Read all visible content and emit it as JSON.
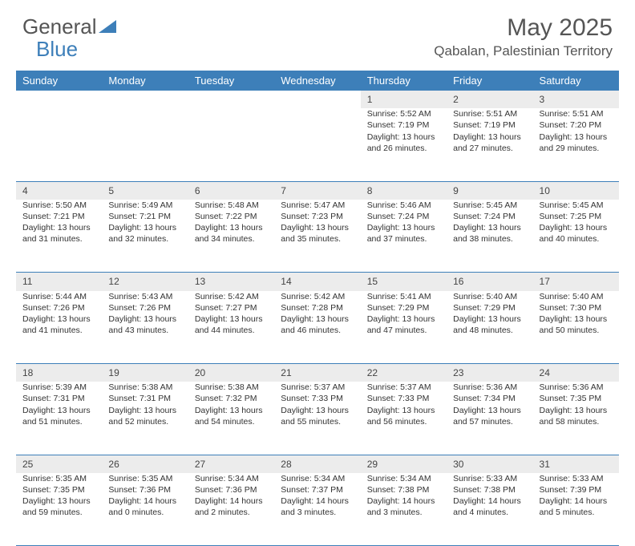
{
  "brand": {
    "part1": "General",
    "part2": "Blue"
  },
  "title": "May 2025",
  "location": "Qabalan, Palestinian Territory",
  "colors": {
    "header_bg": "#3d7fb9",
    "header_text": "#ffffff",
    "daynum_bg": "#ececec",
    "rule": "#3d7fb9",
    "page_bg": "#ffffff",
    "body_text": "#333333"
  },
  "day_headers": [
    "Sunday",
    "Monday",
    "Tuesday",
    "Wednesday",
    "Thursday",
    "Friday",
    "Saturday"
  ],
  "weeks": [
    [
      null,
      null,
      null,
      null,
      {
        "n": "1",
        "sr": "5:52 AM",
        "ss": "7:19 PM",
        "dl": "13 hours and 26 minutes."
      },
      {
        "n": "2",
        "sr": "5:51 AM",
        "ss": "7:19 PM",
        "dl": "13 hours and 27 minutes."
      },
      {
        "n": "3",
        "sr": "5:51 AM",
        "ss": "7:20 PM",
        "dl": "13 hours and 29 minutes."
      }
    ],
    [
      {
        "n": "4",
        "sr": "5:50 AM",
        "ss": "7:21 PM",
        "dl": "13 hours and 31 minutes."
      },
      {
        "n": "5",
        "sr": "5:49 AM",
        "ss": "7:21 PM",
        "dl": "13 hours and 32 minutes."
      },
      {
        "n": "6",
        "sr": "5:48 AM",
        "ss": "7:22 PM",
        "dl": "13 hours and 34 minutes."
      },
      {
        "n": "7",
        "sr": "5:47 AM",
        "ss": "7:23 PM",
        "dl": "13 hours and 35 minutes."
      },
      {
        "n": "8",
        "sr": "5:46 AM",
        "ss": "7:24 PM",
        "dl": "13 hours and 37 minutes."
      },
      {
        "n": "9",
        "sr": "5:45 AM",
        "ss": "7:24 PM",
        "dl": "13 hours and 38 minutes."
      },
      {
        "n": "10",
        "sr": "5:45 AM",
        "ss": "7:25 PM",
        "dl": "13 hours and 40 minutes."
      }
    ],
    [
      {
        "n": "11",
        "sr": "5:44 AM",
        "ss": "7:26 PM",
        "dl": "13 hours and 41 minutes."
      },
      {
        "n": "12",
        "sr": "5:43 AM",
        "ss": "7:26 PM",
        "dl": "13 hours and 43 minutes."
      },
      {
        "n": "13",
        "sr": "5:42 AM",
        "ss": "7:27 PM",
        "dl": "13 hours and 44 minutes."
      },
      {
        "n": "14",
        "sr": "5:42 AM",
        "ss": "7:28 PM",
        "dl": "13 hours and 46 minutes."
      },
      {
        "n": "15",
        "sr": "5:41 AM",
        "ss": "7:29 PM",
        "dl": "13 hours and 47 minutes."
      },
      {
        "n": "16",
        "sr": "5:40 AM",
        "ss": "7:29 PM",
        "dl": "13 hours and 48 minutes."
      },
      {
        "n": "17",
        "sr": "5:40 AM",
        "ss": "7:30 PM",
        "dl": "13 hours and 50 minutes."
      }
    ],
    [
      {
        "n": "18",
        "sr": "5:39 AM",
        "ss": "7:31 PM",
        "dl": "13 hours and 51 minutes."
      },
      {
        "n": "19",
        "sr": "5:38 AM",
        "ss": "7:31 PM",
        "dl": "13 hours and 52 minutes."
      },
      {
        "n": "20",
        "sr": "5:38 AM",
        "ss": "7:32 PM",
        "dl": "13 hours and 54 minutes."
      },
      {
        "n": "21",
        "sr": "5:37 AM",
        "ss": "7:33 PM",
        "dl": "13 hours and 55 minutes."
      },
      {
        "n": "22",
        "sr": "5:37 AM",
        "ss": "7:33 PM",
        "dl": "13 hours and 56 minutes."
      },
      {
        "n": "23",
        "sr": "5:36 AM",
        "ss": "7:34 PM",
        "dl": "13 hours and 57 minutes."
      },
      {
        "n": "24",
        "sr": "5:36 AM",
        "ss": "7:35 PM",
        "dl": "13 hours and 58 minutes."
      }
    ],
    [
      {
        "n": "25",
        "sr": "5:35 AM",
        "ss": "7:35 PM",
        "dl": "13 hours and 59 minutes."
      },
      {
        "n": "26",
        "sr": "5:35 AM",
        "ss": "7:36 PM",
        "dl": "14 hours and 0 minutes."
      },
      {
        "n": "27",
        "sr": "5:34 AM",
        "ss": "7:36 PM",
        "dl": "14 hours and 2 minutes."
      },
      {
        "n": "28",
        "sr": "5:34 AM",
        "ss": "7:37 PM",
        "dl": "14 hours and 3 minutes."
      },
      {
        "n": "29",
        "sr": "5:34 AM",
        "ss": "7:38 PM",
        "dl": "14 hours and 3 minutes."
      },
      {
        "n": "30",
        "sr": "5:33 AM",
        "ss": "7:38 PM",
        "dl": "14 hours and 4 minutes."
      },
      {
        "n": "31",
        "sr": "5:33 AM",
        "ss": "7:39 PM",
        "dl": "14 hours and 5 minutes."
      }
    ]
  ],
  "labels": {
    "sunrise": "Sunrise:",
    "sunset": "Sunset:",
    "daylight": "Daylight:"
  }
}
